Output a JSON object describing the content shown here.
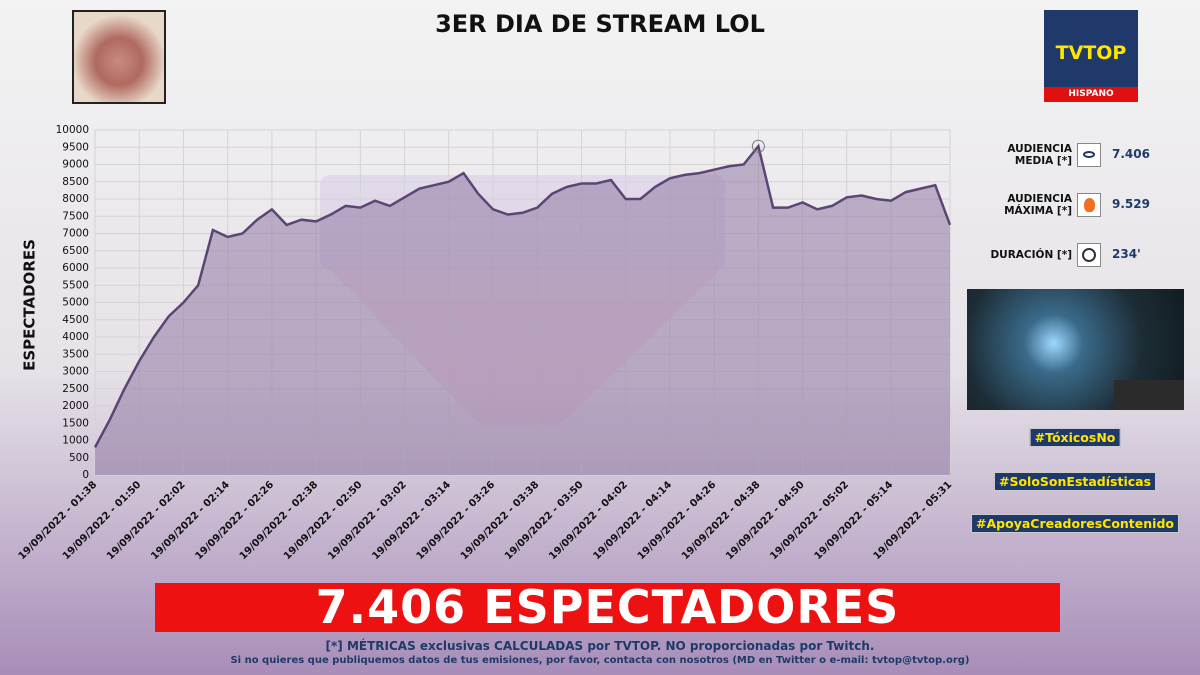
{
  "header": {
    "title": "3ER DIA DE STREAM LOL"
  },
  "logo": {
    "name": "TVTOP",
    "subtitle": "HISPANO"
  },
  "chart_data": {
    "type": "area",
    "y_label": "ESPECTADORES",
    "categories": [
      "19/09/2022 - 01:38",
      null,
      null,
      "19/09/2022 - 01:50",
      null,
      null,
      "19/09/2022 - 02:02",
      null,
      null,
      "19/09/2022 - 02:14",
      null,
      null,
      "19/09/2022 - 02:26",
      null,
      null,
      "19/09/2022 - 02:38",
      null,
      null,
      "19/09/2022 - 02:50",
      null,
      null,
      "19/09/2022 - 03:02",
      null,
      null,
      "19/09/2022 - 03:14",
      null,
      null,
      "19/09/2022 - 03:26",
      null,
      null,
      "19/09/2022 - 03:38",
      null,
      null,
      "19/09/2022 - 03:50",
      null,
      null,
      "19/09/2022 - 04:02",
      null,
      null,
      "19/09/2022 - 04:14",
      null,
      null,
      "19/09/2022 - 04:26",
      null,
      null,
      "19/09/2022 - 04:38",
      null,
      null,
      "19/09/2022 - 04:50",
      null,
      null,
      "19/09/2022 - 05:02",
      null,
      null,
      "19/09/2022 - 05:14",
      null,
      null,
      null,
      "19/09/2022 - 05:31"
    ],
    "values": [
      800,
      1600,
      2500,
      3300,
      4000,
      4600,
      5000,
      5500,
      7100,
      6900,
      7000,
      7400,
      7700,
      7250,
      7400,
      7350,
      7550,
      7800,
      7750,
      7950,
      7800,
      8050,
      8300,
      8400,
      8500,
      8750,
      8150,
      7700,
      7550,
      7600,
      7750,
      8150,
      8350,
      8450,
      8450,
      8550,
      8000,
      8000,
      8350,
      8600,
      8700,
      8750,
      8850,
      8950,
      9000,
      9529,
      7750,
      7750,
      7900,
      7700,
      7800,
      8050,
      8100,
      8000,
      7950,
      8200,
      8300,
      8400,
      7250
    ],
    "color": "#5b4673",
    "ylim": [
      0,
      10000
    ],
    "yticks": [
      0,
      500,
      1000,
      1500,
      2000,
      2500,
      3000,
      3500,
      4000,
      4500,
      5000,
      5500,
      6000,
      6500,
      7000,
      7500,
      8000,
      8500,
      9000,
      9500,
      10000
    ],
    "grid": true
  },
  "stats": [
    {
      "label": "AUDIENCIA MEDIA [*]",
      "value": "7.406"
    },
    {
      "label": "AUDIENCIA MÁXIMA [*]",
      "value": "9.529"
    },
    {
      "label": "DURACIÓN [*]",
      "value": "234'"
    }
  ],
  "hashtags": [
    "#TóxicosNo",
    "#SoloSonEstadísticas",
    "#ApoyaCreadoresContenido"
  ],
  "banner": "7.406 ESPECTADORES",
  "footer": {
    "note": "[*] MÉTRICAS exclusivas CALCULADAS por TVTOP. NO proporcionadas por Twitch.",
    "contact": "Si no quieres que publiquemos datos de tus emisiones, por favor, contacta con nosotros (MD en Twitter o e-mail: tvtop@tvtop.org)"
  }
}
